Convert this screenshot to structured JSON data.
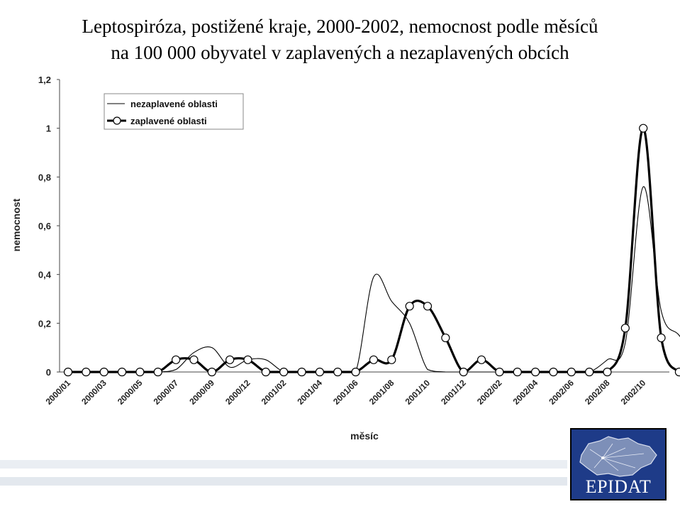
{
  "title_line1": "Leptospiróza, postižené kraje, 2000-2002, nemocnost podle měsíců",
  "title_line2": "na 100 000 obyvatel v zaplavených a nezaplavených obcích",
  "logo_text": "EPIDAT",
  "chart_data": {
    "type": "line",
    "xlabel": "měsíc",
    "ylabel": "nemocnost",
    "ylim": [
      0,
      1.2
    ],
    "y_ticks": [
      "0",
      "0,2",
      "0,4",
      "0,6",
      "0,8",
      "1",
      "1,2"
    ],
    "x_tick_labels": [
      "2000/01",
      "2000/03",
      "2000/05",
      "2000/07",
      "2000/09",
      "2000/12",
      "2001/02",
      "2001/04",
      "2001/06",
      "2001/08",
      "2001/10",
      "2001/12",
      "2002/02",
      "2002/04",
      "2002/06",
      "2002/08",
      "2002/10"
    ],
    "legend_position": "top-left",
    "grid": false,
    "series": [
      {
        "name": "nezaplavené oblasti",
        "style": "thin",
        "color": "#000000",
        "values": [
          0,
          0,
          0,
          0,
          0,
          0,
          0.01,
          0.08,
          0.1,
          0.02,
          0.05,
          0.05,
          0,
          0,
          0,
          0,
          0,
          0.39,
          0.29,
          0.2,
          0.01,
          0,
          0,
          0,
          0,
          0,
          0,
          0,
          0,
          0,
          0.05,
          0.12,
          0.76,
          0.25,
          0.15,
          0.05
        ]
      },
      {
        "name": "zaplavené oblasti",
        "style": "thick-markers",
        "color": "#000000",
        "values": [
          0,
          0,
          0,
          0,
          0,
          0,
          0.05,
          0.05,
          0,
          0.05,
          0.05,
          0,
          0,
          0,
          0,
          0,
          0,
          0.05,
          0.05,
          0.27,
          0.27,
          0.14,
          0,
          0.05,
          0,
          0,
          0,
          0,
          0,
          0,
          0,
          0.18,
          1.0,
          0.14,
          0,
          0
        ]
      }
    ]
  }
}
